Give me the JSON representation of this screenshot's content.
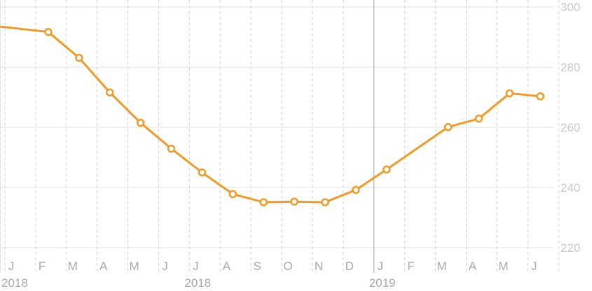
{
  "chart_data": {
    "type": "line",
    "x": [
      "2018-01",
      "2018-02",
      "2018-03",
      "2018-04",
      "2018-05",
      "2018-06",
      "2018-07",
      "2018-08",
      "2018-09",
      "2018-10",
      "2018-11",
      "2018-12",
      "2019-01",
      "2019-02",
      "2019-03",
      "2019-04",
      "2019-05",
      "2019-06"
    ],
    "month_labels": [
      "J",
      "F",
      "M",
      "A",
      "M",
      "J",
      "J",
      "A",
      "S",
      "O",
      "N",
      "D",
      "J",
      "F",
      "M",
      "A",
      "M",
      "J"
    ],
    "year_labels": [
      {
        "label": "2018",
        "at": "2018-01"
      },
      {
        "label": "2018",
        "at": "2018-07"
      },
      {
        "label": "2019",
        "at": "2019-01"
      }
    ],
    "series": [
      {
        "values": [
          null,
          291.7,
          283.1,
          271.6,
          261.5,
          252.9,
          245.0,
          237.8,
          235.1,
          235.3,
          235.1,
          239.2,
          246.0,
          null,
          260.1,
          262.9,
          271.3,
          270.3
        ],
        "offscreen_start": 293.5
      }
    ],
    "y_ticks": [
      220,
      240,
      260,
      280,
      300
    ],
    "ylim": [
      220,
      300
    ],
    "y_axis_position": "right",
    "grid": true,
    "line_color": "#f29a26",
    "grid_color": "#e2e2e6",
    "tick_color": "#c8c8cc"
  }
}
